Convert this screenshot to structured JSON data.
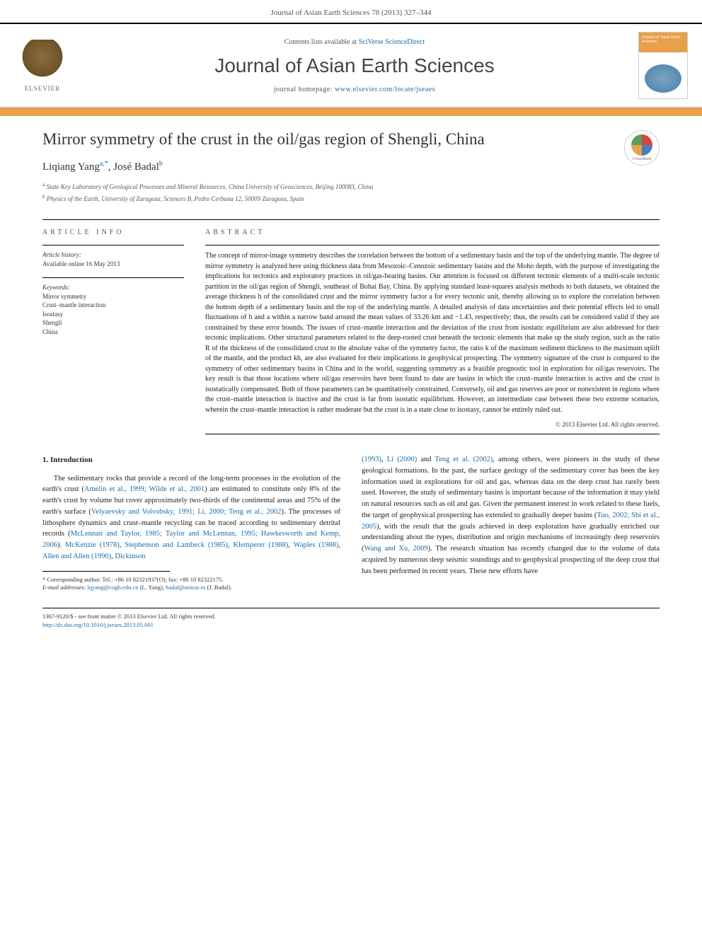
{
  "header": {
    "citation": "Journal of Asian Earth Sciences 78 (2013) 327–344"
  },
  "topbar": {
    "elsevier_label": "ELSEVIER",
    "contents_prefix": "Contents lists available at ",
    "contents_link": "SciVerse ScienceDirect",
    "journal_name": "Journal of Asian Earth Sciences",
    "homepage_prefix": "journal homepage: ",
    "homepage_url": "www.elsevier.com/locate/jseaes",
    "cover_label": "Journal of Asian Earth Sciences"
  },
  "article": {
    "title": "Mirror symmetry of the crust in the oil/gas region of Shengli, China",
    "authors_html": "Liqiang Yang",
    "author_a_sup": "a,*",
    "author_sep": ", ",
    "author_b": "José Badal",
    "author_b_sup": "b",
    "affil_a_sup": "a",
    "affil_a": "State Key Laboratory of Geological Processes and Mineral Resources, China University of Geosciences, Beijing 100083, China",
    "affil_b_sup": "b",
    "affil_b": "Physics of the Earth, University of Zaragoza, Sciences B, Pedro Cerbuna 12, 50009 Zaragoza, Spain",
    "crossmark_label": "CrossMark"
  },
  "info": {
    "heading": "ARTICLE INFO",
    "history_label": "Article history:",
    "history_text": "Available online 16 May 2013",
    "keywords_label": "Keywords:",
    "keywords": [
      "Mirror symmetry",
      "Crust–mantle interaction",
      "Isostasy",
      "Shengli",
      "China"
    ]
  },
  "abstract": {
    "heading": "ABSTRACT",
    "text": "The concept of mirror-image symmetry describes the correlation between the bottom of a sedimentary basin and the top of the underlying mantle. The degree of mirror symmetry is analyzed here using thickness data from Mesozoic–Cenozoic sedimentary basins and the Moho depth, with the purpose of investigating the implications for tectonics and exploratory practices in oil/gas-bearing basins. Our attention is focused on different tectonic elements of a multi-scale tectonic partition in the oil/gas region of Shengli, southeast of Bohai Bay, China. By applying standard least-squares analysis methods to both datasets, we obtained the average thickness h of the consolidated crust and the mirror symmetry factor a for every tectonic unit, thereby allowing us to explore the correlation between the bottom depth of a sedimentary basin and the top of the underlying mantle. A detailed analysis of data uncertainties and their potential effects led to small fluctuations of h and a within a narrow band around the mean values of 33.26 km and −1.43, respectively; thus, the results can be considered valid if they are constrained by these error bounds. The issues of crust–mantle interaction and the deviation of the crust from isostatic equilibrium are also addressed for their tectonic implications. Other structural parameters related to the deep-rooted crust beneath the tectonic elements that make up the study region, such as the ratio R of the thickness of the consolidated crust to the absolute value of the symmetry factor, the ratio k of the maximum sediment thickness to the maximum uplift of the mantle, and the product kh, are also evaluated for their implications in geophysical prospecting. The symmetry signature of the crust is compared to the symmetry of other sedimentary basins in China and in the world, suggesting symmetry as a feasible prognostic tool in exploration for oil/gas reservoirs. The key result is that those locations where oil/gas reservoirs have been found to date are basins in which the crust–mantle interaction is active and the crust is isostatically compensated. Both of those parameters can be quantitatively constrained. Conversely, oil and gas reserves are poor or nonexistent in regions where the crust–mantle interaction is inactive and the crust is far from isostatic equilibrium. However, an intermediate case between these two extreme scenarios, wherein the crust–mantle interaction is rather moderate but the crust is in a state close to isostasy, cannot be entirely ruled out.",
    "copyright": "© 2013 Elsevier Ltd. All rights reserved."
  },
  "body": {
    "section_heading": "1. Introduction",
    "left_p1_a": "The sedimentary rocks that provide a record of the long-term processes in the evolution of the earth's crust (",
    "left_ref1": "Amelin et al., 1999; Wilde et al., 2001",
    "left_p1_b": ") are estimated to constitute only 8% of the earth's crust by volume but cover approximately two-thirds of the continental areas and 75% of the earth's surface (",
    "left_ref2": "Velyaevsky and Volvobsky, 1991; Li, 2000; Teng et al., 2002",
    "left_p1_c": "). The processes of lithosphere dynamics and crust–mantle recycling can be traced according to sedimentary detrital records (",
    "left_ref3": "McLennan and Taylor, 1985; Taylor and McLennan, 1995; Hawkesworth and Kemp, 2006",
    "left_p1_d": "). ",
    "left_ref4": "McKenzie (1978)",
    "left_p1_e": ", ",
    "left_ref5": "Stephenson and Lambeck (1985)",
    "left_p1_f": ", ",
    "left_ref6": "Klemperer (1988)",
    "left_p1_g": ", ",
    "left_ref7": "Waples (1988)",
    "left_p1_h": ", ",
    "left_ref8": "Allen and Allen (1990)",
    "left_p1_i": ", ",
    "left_ref9": "Dickinson",
    "right_ref1": "(1993)",
    "right_p1_a": ", ",
    "right_ref2": "Li (2000)",
    "right_p1_b": " and ",
    "right_ref3": "Teng et al. (2002)",
    "right_p1_c": ", among others, were pioneers in the study of these geological formations. In the past, the surface geology of the sedimentary cover has been the key information used in explorations for oil and gas, whereas data on the deep crust has rarely been used. However, the study of sedimentary basins is important because of the information it may yield on natural resources such as oil and gas. Given the permanent interest in work related to these fuels, the target of geophysical prospecting has extended to gradually deeper basins (",
    "right_ref4": "Tuo, 2002; Shi et al., 2005",
    "right_p1_d": "), with the result that the goals achieved in deep exploration have gradually enriched our understanding about the types, distribution and origin mechanisms of increasingly deep reservoirs (",
    "right_ref5": "Wang and Xu, 2009",
    "right_p1_e": "). The research situation has recently changed due to the volume of data acquired by numerous deep seismic soundings and to geophysical prospecting of the deep crust that has been performed in recent years. These new efforts have"
  },
  "footnote": {
    "corresp_label": "* Corresponding author. Tel.: +86 10 82321937(O); fax: +86 10 82322175.",
    "email_label": "E-mail addresses: ",
    "email1": "lqyang@cugb.edu.cn",
    "email1_who": " (L. Yang), ",
    "email2": "badal@unizar.es",
    "email2_who": " (J. Badal)."
  },
  "footer": {
    "issn": "1367-9120/$ - see front matter © 2013 Elsevier Ltd. All rights reserved.",
    "doi": "http://dx.doi.org/10.1016/j.jseaes.2013.05.001"
  }
}
